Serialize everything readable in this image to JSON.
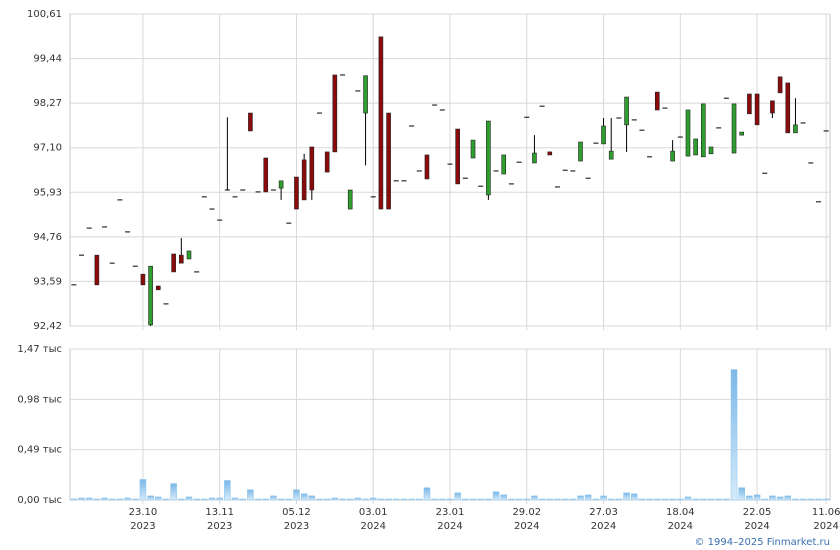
{
  "chart_data": [
    {
      "type": "candlestick",
      "categories": [
        null,
        null,
        null,
        null,
        null,
        null,
        null,
        null,
        null,
        [
          "23.10",
          "2023"
        ],
        null,
        null,
        null,
        null,
        null,
        null,
        null,
        null,
        null,
        [
          "13.11",
          "2023"
        ],
        null,
        null,
        null,
        null,
        null,
        null,
        null,
        null,
        null,
        [
          "05.12",
          "2023"
        ],
        null,
        null,
        null,
        null,
        null,
        null,
        null,
        null,
        null,
        [
          "03.01",
          "2024"
        ],
        null,
        null,
        null,
        null,
        null,
        null,
        null,
        null,
        null,
        [
          "23.01",
          "2024"
        ],
        null,
        null,
        null,
        null,
        null,
        null,
        null,
        null,
        null,
        [
          "29.02",
          "2024"
        ],
        null,
        null,
        null,
        null,
        null,
        null,
        null,
        null,
        null,
        [
          "27.03",
          "2024"
        ],
        null,
        null,
        null,
        null,
        null,
        null,
        null,
        null,
        null,
        [
          "18.04",
          "2024"
        ],
        null,
        null,
        null,
        null,
        null,
        null,
        null,
        null,
        null,
        [
          "22.05",
          "2024"
        ],
        null,
        null,
        null,
        null,
        null,
        null,
        null,
        null,
        [
          "11.06",
          "2024"
        ]
      ],
      "ohlc": [
        [
          93.5,
          93.5,
          93.5,
          93.5
        ],
        [
          94.28,
          94.28,
          94.28,
          94.28
        ],
        [
          94.99,
          94.99,
          94.99,
          94.99
        ],
        [
          94.28,
          94.28,
          93.5,
          93.5
        ],
        [
          95.02,
          95.02,
          95.02,
          95.02
        ],
        [
          94.07,
          94.07,
          94.07,
          94.07
        ],
        [
          95.73,
          95.73,
          95.73,
          95.73
        ],
        [
          94.89,
          94.89,
          94.89,
          94.89
        ],
        [
          93.99,
          93.99,
          93.99,
          93.99
        ],
        [
          93.78,
          93.78,
          93.5,
          93.5
        ],
        [
          92.45,
          93.99,
          92.42,
          93.99
        ],
        [
          93.47,
          93.47,
          93.37,
          93.37
        ],
        [
          93.0,
          93.0,
          93.0,
          93.0
        ],
        [
          94.31,
          94.31,
          93.84,
          93.84
        ],
        [
          94.28,
          94.73,
          94.07,
          94.07
        ],
        [
          94.18,
          94.39,
          94.18,
          94.39
        ],
        [
          93.84,
          93.84,
          93.84,
          93.84
        ],
        [
          95.81,
          95.81,
          95.81,
          95.81
        ],
        [
          95.49,
          95.49,
          95.49,
          95.49
        ],
        [
          95.2,
          95.2,
          95.2,
          95.2
        ],
        [
          95.99,
          97.9,
          95.99,
          95.99
        ],
        [
          95.81,
          95.81,
          95.81,
          95.81
        ],
        [
          95.99,
          95.99,
          95.99,
          95.99
        ],
        [
          98.01,
          98.01,
          97.54,
          97.54
        ],
        [
          95.94,
          95.94,
          95.94,
          95.94
        ],
        [
          96.83,
          96.83,
          95.94,
          95.94
        ],
        [
          95.99,
          95.99,
          95.99,
          95.99
        ],
        [
          96.04,
          96.23,
          95.73,
          96.23
        ],
        [
          95.12,
          95.12,
          95.12,
          95.12
        ],
        [
          96.33,
          96.33,
          95.49,
          95.49
        ],
        [
          96.78,
          96.94,
          95.73,
          95.73
        ],
        [
          97.12,
          97.12,
          95.73,
          95.99
        ],
        [
          98.01,
          98.01,
          98.01,
          98.01
        ],
        [
          96.99,
          96.99,
          96.46,
          96.46
        ],
        [
          99.01,
          99.01,
          96.99,
          96.99
        ],
        [
          99.01,
          99.01,
          99.01,
          99.01
        ],
        [
          95.49,
          95.99,
          95.49,
          95.99
        ],
        [
          98.59,
          98.59,
          98.59,
          98.59
        ],
        [
          98.01,
          98.99,
          96.64,
          98.99
        ],
        [
          95.81,
          95.81,
          95.81,
          95.81
        ],
        [
          100.01,
          100.01,
          95.49,
          95.49
        ],
        [
          98.01,
          98.01,
          95.49,
          95.49
        ],
        [
          96.23,
          96.23,
          96.23,
          96.23
        ],
        [
          96.23,
          96.23,
          96.23,
          96.23
        ],
        [
          97.67,
          97.67,
          97.67,
          97.67
        ],
        [
          96.49,
          96.49,
          96.49,
          96.49
        ],
        [
          96.91,
          96.91,
          96.28,
          96.28
        ],
        [
          98.22,
          98.22,
          98.22,
          98.22
        ],
        [
          98.09,
          98.09,
          98.09,
          98.09
        ],
        [
          96.67,
          96.67,
          96.67,
          96.67
        ],
        [
          97.59,
          97.59,
          96.15,
          96.15
        ],
        [
          96.3,
          96.3,
          96.3,
          96.3
        ],
        [
          96.83,
          97.3,
          96.83,
          97.3
        ],
        [
          96.09,
          96.09,
          96.09,
          96.09
        ],
        [
          95.86,
          97.8,
          95.73,
          97.8
        ],
        [
          96.49,
          96.49,
          96.49,
          96.49
        ],
        [
          96.41,
          96.91,
          96.41,
          96.91
        ],
        [
          96.15,
          96.15,
          96.15,
          96.15
        ],
        [
          96.72,
          96.72,
          96.72,
          96.72
        ],
        [
          97.9,
          97.9,
          97.9,
          97.9
        ],
        [
          96.7,
          97.43,
          96.7,
          96.96
        ],
        [
          98.19,
          98.19,
          98.19,
          98.19
        ],
        [
          96.99,
          96.99,
          96.91,
          96.91
        ],
        [
          96.07,
          96.07,
          96.07,
          96.07
        ],
        [
          96.51,
          96.51,
          96.51,
          96.51
        ],
        [
          96.49,
          96.49,
          96.49,
          96.49
        ],
        [
          96.75,
          97.25,
          96.75,
          97.25
        ],
        [
          96.3,
          96.3,
          96.3,
          96.3
        ],
        [
          97.22,
          97.22,
          97.22,
          97.22
        ],
        [
          97.2,
          97.88,
          97.2,
          97.67
        ],
        [
          96.8,
          97.88,
          96.8,
          97.01
        ],
        [
          97.88,
          97.88,
          97.88,
          97.88
        ],
        [
          97.7,
          98.43,
          96.99,
          98.43
        ],
        [
          97.83,
          97.83,
          97.83,
          97.83
        ],
        [
          97.56,
          97.56,
          97.56,
          97.56
        ],
        [
          96.86,
          96.86,
          96.86,
          96.86
        ],
        [
          98.56,
          98.56,
          98.09,
          98.09
        ],
        [
          98.14,
          98.14,
          98.14,
          98.14
        ],
        [
          96.75,
          97.3,
          96.75,
          97.01
        ],
        [
          97.38,
          97.38,
          97.38,
          97.38
        ],
        [
          96.88,
          98.09,
          96.88,
          98.09
        ],
        [
          96.91,
          97.33,
          96.91,
          97.33
        ],
        [
          96.86,
          98.25,
          96.86,
          98.25
        ],
        [
          96.94,
          97.12,
          96.94,
          97.12
        ],
        [
          97.62,
          97.62,
          97.62,
          97.62
        ],
        [
          98.4,
          98.4,
          98.4,
          98.4
        ],
        [
          96.96,
          98.25,
          96.96,
          98.25
        ],
        [
          97.43,
          97.51,
          97.43,
          97.51
        ],
        [
          98.51,
          98.51,
          97.99,
          97.99
        ],
        [
          98.51,
          98.51,
          97.7,
          97.7
        ],
        [
          96.43,
          96.43,
          96.43,
          96.43
        ],
        [
          98.33,
          98.33,
          97.88,
          98.01
        ],
        [
          98.96,
          98.96,
          98.54,
          98.54
        ],
        [
          98.8,
          98.8,
          97.49,
          97.49
        ],
        [
          97.49,
          98.4,
          97.49,
          97.7
        ],
        [
          97.75,
          97.75,
          97.75,
          97.75
        ],
        [
          96.7,
          96.7,
          96.7,
          96.7
        ],
        [
          95.68,
          95.68,
          95.68,
          95.68
        ],
        [
          97.54,
          97.54,
          97.54,
          97.54
        ]
      ],
      "up_color": "#2e9e2e",
      "down_color": "#8b0a0a",
      "flat_color": "#000000",
      "ylim": [
        92.42,
        100.61
      ],
      "yticks": [
        {
          "value": 92.42,
          "label": "92,42"
        },
        {
          "value": 93.59,
          "label": "93,59"
        },
        {
          "value": 94.76,
          "label": "94,76"
        },
        {
          "value": 95.93,
          "label": "95,93"
        },
        {
          "value": 97.1,
          "label": "97,10"
        },
        {
          "value": 98.27,
          "label": "98,27"
        },
        {
          "value": 99.44,
          "label": "99,44"
        },
        {
          "value": 100.61,
          "label": "100,61"
        }
      ],
      "grid": true
    },
    {
      "type": "bar",
      "values": [
        0.01,
        0.02,
        0.02,
        0.01,
        0.02,
        0.01,
        0.01,
        0.02,
        0.01,
        0.2,
        0.04,
        0.03,
        0.01,
        0.16,
        0.01,
        0.03,
        0.01,
        0.01,
        0.02,
        0.02,
        0.19,
        0.02,
        0.01,
        0.1,
        0.01,
        0.01,
        0.04,
        0.01,
        0.01,
        0.1,
        0.06,
        0.04,
        0.01,
        0.01,
        0.02,
        0.01,
        0.01,
        0.02,
        0.01,
        0.02,
        0.01,
        0.01,
        0.01,
        0.01,
        0.01,
        0.01,
        0.12,
        0.01,
        0.01,
        0.01,
        0.07,
        0.01,
        0.01,
        0.01,
        0.01,
        0.08,
        0.05,
        0.01,
        0.01,
        0.01,
        0.04,
        0.01,
        0.01,
        0.01,
        0.01,
        0.01,
        0.04,
        0.05,
        0.01,
        0.04,
        0.01,
        0.01,
        0.07,
        0.06,
        0.01,
        0.01,
        0.01,
        0.01,
        0.01,
        0.01,
        0.03,
        0.01,
        0.01,
        0.01,
        0.01,
        0.01,
        1.27,
        0.12,
        0.04,
        0.05,
        0.01,
        0.04,
        0.03,
        0.04,
        0.01,
        0.01,
        0.01,
        0.01,
        0.01
      ],
      "color": "#8cc4ec",
      "ylim": [
        0,
        1.47
      ],
      "yticks": [
        {
          "value": 0,
          "label": "0,00 тыс"
        },
        {
          "value": 0.49,
          "label": "0,49 тыс"
        },
        {
          "value": 0.98,
          "label": "0,98 тыс"
        },
        {
          "value": 1.47,
          "label": "1,47 тыс"
        }
      ],
      "grid": true
    }
  ],
  "footer": "© 1994–2025 Finmarket.ru"
}
